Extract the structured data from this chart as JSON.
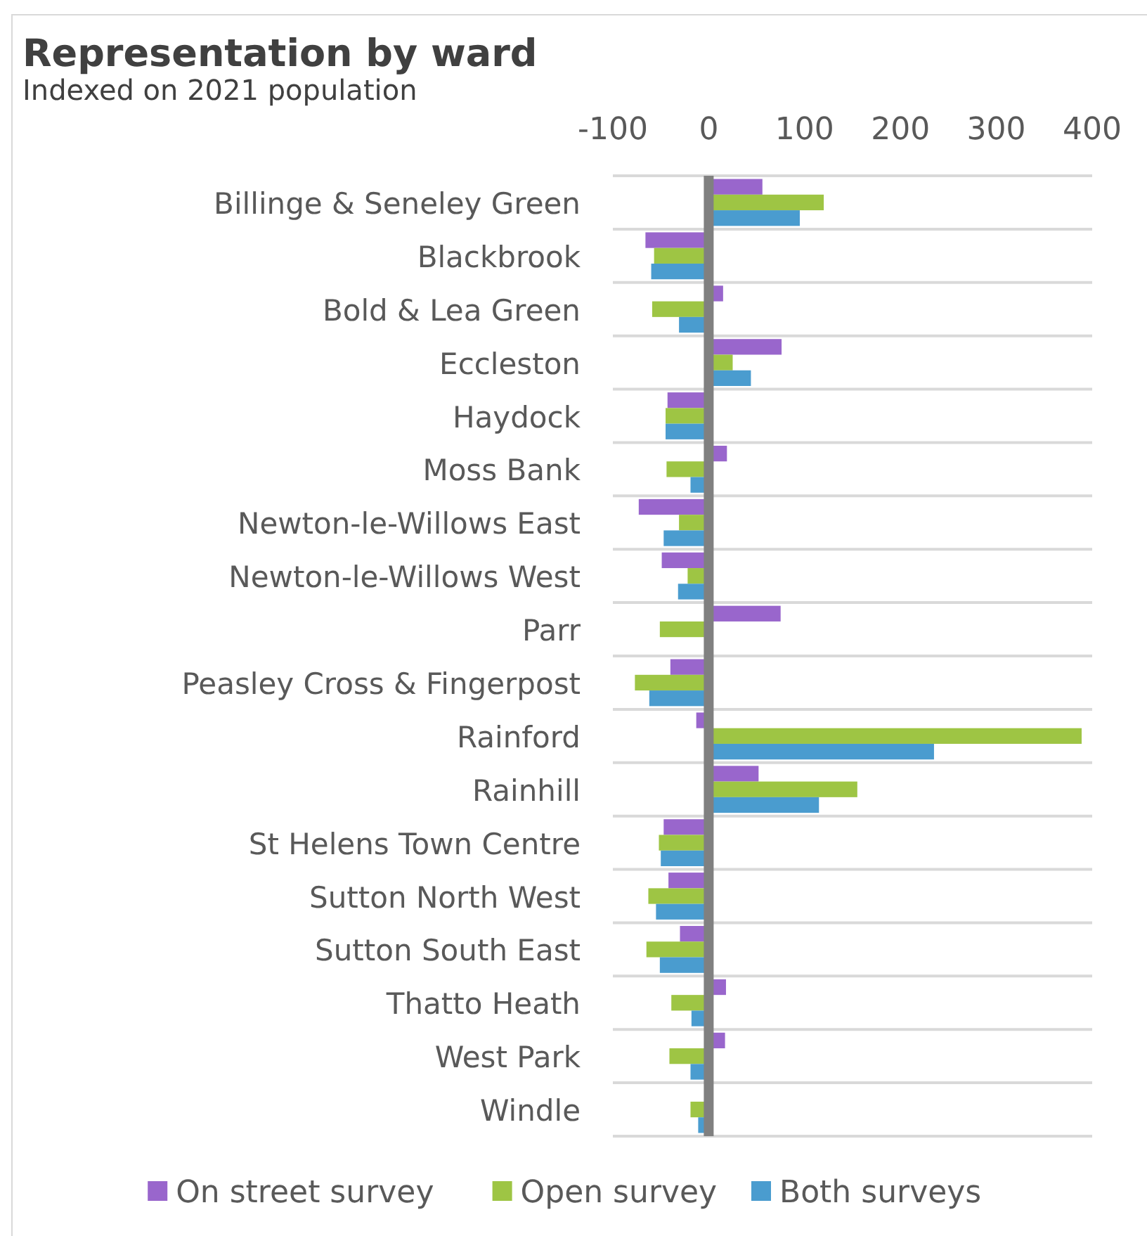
{
  "chart_data": {
    "type": "bar",
    "orientation": "horizontal",
    "title": "Representation by ward",
    "subtitle": "Indexed on 2021 population",
    "categories": [
      "Billinge & Seneley Green",
      "Blackbrook",
      "Bold & Lea Green",
      "Eccleston",
      "Haydock",
      "Moss Bank",
      "Newton-le-Willows East",
      "Newton-le-Willows West",
      "Parr",
      "Peasley Cross & Fingerpost",
      "Rainford",
      "Rainhill",
      "St Helens Town Centre",
      "Sutton North West",
      "Sutton South East",
      "Thatto Heath",
      "West Park",
      "Windle"
    ],
    "series": [
      {
        "name": "On street survey",
        "color": "#9966cc",
        "values": [
          56,
          -66,
          15,
          76,
          -43,
          19,
          -73,
          -49,
          75,
          -40,
          -13,
          52,
          -47,
          -42,
          -30,
          18,
          17,
          null
        ]
      },
      {
        "name": "Open survey",
        "color": "#9ec544",
        "values": [
          120,
          -57,
          -59,
          25,
          -45,
          -44,
          -31,
          -22,
          -51,
          -77,
          389,
          155,
          -52,
          -63,
          -65,
          -39,
          -41,
          -19
        ]
      },
      {
        "name": "Both surveys",
        "color": "#4a9ccf",
        "values": [
          95,
          -60,
          -31,
          44,
          -45,
          -19,
          -47,
          -32,
          null,
          -62,
          235,
          115,
          -50,
          -55,
          -51,
          -18,
          -19,
          -11
        ]
      }
    ],
    "xlim": [
      -100,
      400
    ],
    "xticks": [
      -100,
      0,
      100,
      200,
      300,
      400
    ],
    "grid": "y",
    "legend": "bottom"
  }
}
